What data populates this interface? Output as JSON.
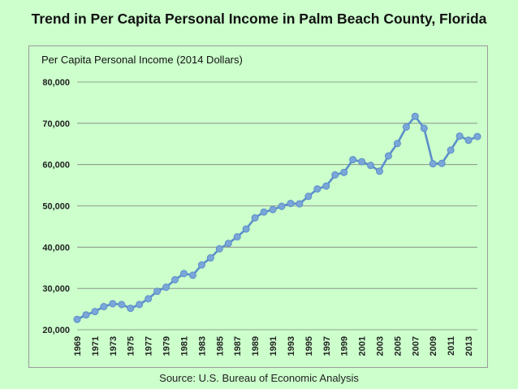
{
  "title": "Trend in Per Capita Personal Income in Palm Beach County, Florida",
  "source": "Source: U.S. Bureau of Economic Analysis",
  "colors": {
    "background": "#ccffcc",
    "line": "#5b8ec9",
    "marker": "#7aa6d8",
    "grid": "#808080"
  },
  "chart_data": {
    "type": "line",
    "title": "Per Capita Personal Income (2014 Dollars)",
    "xlabel": "",
    "ylabel": "",
    "ylim": [
      20000,
      80000
    ],
    "yticks": [
      "20,000",
      "30,000",
      "40,000",
      "50,000",
      "60,000",
      "70,000",
      "80,000"
    ],
    "grid": true,
    "legend": "none",
    "xtick_labels": [
      "1969",
      "1971",
      "1973",
      "1975",
      "1977",
      "1979",
      "1981",
      "1983",
      "1985",
      "1987",
      "1989",
      "1991",
      "1993",
      "1995",
      "1997",
      "1999",
      "2001",
      "2003",
      "2005",
      "2007",
      "2009",
      "2011",
      "2013"
    ],
    "x": [
      1969,
      1970,
      1971,
      1972,
      1973,
      1974,
      1975,
      1976,
      1977,
      1978,
      1979,
      1980,
      1981,
      1982,
      1983,
      1984,
      1985,
      1986,
      1987,
      1988,
      1989,
      1990,
      1991,
      1992,
      1993,
      1994,
      1995,
      1996,
      1997,
      1998,
      1999,
      2000,
      2001,
      2002,
      2003,
      2004,
      2005,
      2006,
      2007,
      2008,
      2009,
      2010,
      2011,
      2012,
      2013,
      2014
    ],
    "y": [
      22500,
      23600,
      24400,
      25600,
      26300,
      26100,
      25200,
      26100,
      27500,
      29300,
      30300,
      32100,
      33600,
      33200,
      35700,
      37400,
      39600,
      40900,
      42500,
      44400,
      47100,
      48500,
      49100,
      49900,
      50600,
      50500,
      52300,
      54100,
      54800,
      57500,
      58100,
      61200,
      60700,
      59800,
      58400,
      62100,
      65100,
      69100,
      71700,
      68800,
      60200,
      60300,
      63500,
      66900,
      65900,
      66800
    ]
  }
}
